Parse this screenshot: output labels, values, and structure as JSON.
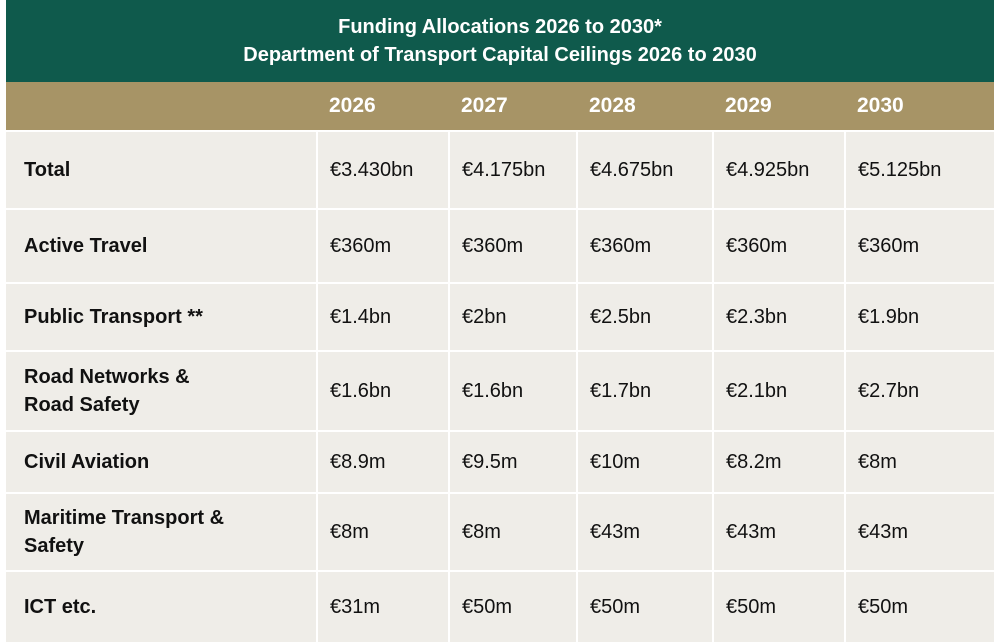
{
  "title": {
    "line1": "Funding Allocations 2026 to 2030*",
    "line2": "Department of Transport Capital Ceilings 2026 to 2030"
  },
  "colors": {
    "title_bg": "#0f5a4c",
    "header_bg": "#a79466",
    "cell_bg": "#efede8"
  },
  "table": {
    "corner": "",
    "years": [
      "2026",
      "2027",
      "2028",
      "2029",
      "2030"
    ],
    "rows": [
      {
        "label": [
          "Total"
        ],
        "values": [
          "€3.430bn",
          "€4.175bn",
          "€4.675bn",
          "€4.925bn",
          "€5.125bn"
        ]
      },
      {
        "label": [
          "Active Travel"
        ],
        "values": [
          "€360m",
          "€360m",
          "€360m",
          "€360m",
          "€360m"
        ]
      },
      {
        "label": [
          "Public Transport **"
        ],
        "values": [
          "€1.4bn",
          "€2bn",
          "€2.5bn",
          "€2.3bn",
          "€1.9bn"
        ]
      },
      {
        "label": [
          "Road Networks &",
          "Road Safety"
        ],
        "values": [
          "€1.6bn",
          "€1.6bn",
          "€1.7bn",
          "€2.1bn",
          "€2.7bn"
        ]
      },
      {
        "label": [
          "Civil Aviation"
        ],
        "values": [
          "€8.9m",
          "€9.5m",
          "€10m",
          "€8.2m",
          "€8m"
        ]
      },
      {
        "label": [
          "Maritime Transport &",
          "Safety"
        ],
        "values": [
          "€8m",
          "€8m",
          "€43m",
          "€43m",
          "€43m"
        ]
      },
      {
        "label": [
          "ICT etc."
        ],
        "values": [
          "€31m",
          "€50m",
          "€50m",
          "€50m",
          "€50m"
        ]
      }
    ]
  }
}
